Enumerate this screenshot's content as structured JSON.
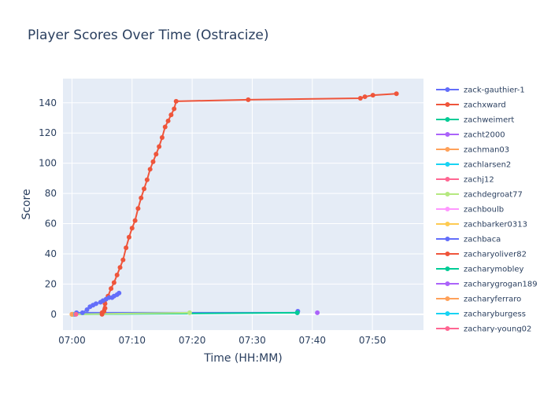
{
  "chart_data": {
    "type": "line",
    "title": "Player Scores Over Time (Ostracize)",
    "xlabel": "Time (HH:MM)",
    "ylabel": "Score",
    "x_ticks": [
      "07:00",
      "07:10",
      "07:20",
      "07:30",
      "07:40",
      "07:50"
    ],
    "y_ticks": [
      0,
      20,
      40,
      60,
      80,
      100,
      120,
      140
    ],
    "xlim": [
      "06:58:30",
      "07:58:30"
    ],
    "ylim": [
      -10.5,
      156
    ],
    "grid": true,
    "legend_position": "right",
    "series": [
      {
        "name": "zack-gauthier-1",
        "color": "#636efa",
        "points": [
          [
            "07:00:45",
            1
          ],
          [
            "07:37:30",
            1
          ],
          [
            "07:37:35",
            2
          ]
        ]
      },
      {
        "name": "zachxward",
        "color": "#EF553B",
        "points": [
          [
            "07:05:00",
            1
          ],
          [
            "07:05:30",
            7
          ],
          [
            "07:06:00",
            12
          ],
          [
            "07:06:30",
            17
          ],
          [
            "07:07:00",
            21
          ],
          [
            "07:07:30",
            26
          ],
          [
            "07:08:00",
            31
          ],
          [
            "07:08:30",
            36
          ],
          [
            "07:09:00",
            44
          ],
          [
            "07:09:30",
            51
          ],
          [
            "07:10:00",
            57
          ],
          [
            "07:10:30",
            62
          ],
          [
            "07:11:00",
            70
          ],
          [
            "07:11:30",
            77
          ],
          [
            "07:12:00",
            83
          ],
          [
            "07:12:30",
            89
          ],
          [
            "07:13:00",
            96
          ],
          [
            "07:13:30",
            101
          ],
          [
            "07:14:00",
            106
          ],
          [
            "07:14:30",
            111
          ],
          [
            "07:15:00",
            117
          ],
          [
            "07:15:30",
            124
          ],
          [
            "07:16:00",
            128
          ],
          [
            "07:16:30",
            132
          ],
          [
            "07:17:00",
            136
          ],
          [
            "07:17:20",
            141
          ],
          [
            "07:29:20",
            142
          ],
          [
            "07:48:00",
            143
          ],
          [
            "07:48:45",
            144
          ],
          [
            "07:50:05",
            145
          ],
          [
            "07:54:00",
            146
          ]
        ]
      },
      {
        "name": "zachweimert",
        "color": "#00cc96",
        "points": [
          [
            "07:00:00",
            0
          ],
          [
            "07:37:30",
            1
          ]
        ]
      },
      {
        "name": "zacht2000",
        "color": "#ab63fa",
        "points": [
          [
            "07:40:50",
            1
          ]
        ]
      },
      {
        "name": "zachman03",
        "color": "#FFA15A",
        "points": [
          [
            "07:00:00",
            0
          ]
        ]
      },
      {
        "name": "zachlarsen2",
        "color": "#19d3f3",
        "points": [
          [
            "07:00:05",
            0
          ]
        ]
      },
      {
        "name": "zachj12",
        "color": "#FF6692",
        "points": [
          [
            "07:00:10",
            0
          ]
        ]
      },
      {
        "name": "zachdegroat77",
        "color": "#B6E880",
        "points": [
          [
            "07:00:15",
            0
          ],
          [
            "07:19:35",
            1
          ]
        ]
      },
      {
        "name": "zachboulb",
        "color": "#FF97FF",
        "points": [
          [
            "07:00:20",
            0
          ]
        ]
      },
      {
        "name": "zachbarker0313",
        "color": "#FECB52",
        "points": [
          [
            "07:00:00",
            0
          ]
        ]
      },
      {
        "name": "zachbaca",
        "color": "#636efa",
        "points": [
          [
            "07:01:45",
            1
          ],
          [
            "07:02:30",
            3
          ],
          [
            "07:03:00",
            5
          ],
          [
            "07:03:30",
            6
          ],
          [
            "07:04:00",
            7
          ],
          [
            "07:04:45",
            8
          ],
          [
            "07:05:10",
            9
          ],
          [
            "07:05:40",
            10
          ],
          [
            "07:06:10",
            11
          ],
          [
            "07:06:40",
            11
          ],
          [
            "07:07:00",
            12
          ],
          [
            "07:07:30",
            13
          ],
          [
            "07:07:50",
            14
          ]
        ]
      },
      {
        "name": "zacharyoliver82",
        "color": "#EF553B",
        "points": [
          [
            "07:05:00",
            0
          ],
          [
            "07:05:20",
            2
          ],
          [
            "07:05:30",
            4
          ]
        ]
      },
      {
        "name": "zacharymobley",
        "color": "#00cc96",
        "points": [
          [
            "07:00:25",
            0
          ]
        ]
      },
      {
        "name": "zacharygrogan189",
        "color": "#ab63fa",
        "points": [
          [
            "07:00:30",
            0
          ]
        ]
      },
      {
        "name": "zacharyferraro",
        "color": "#FFA15A",
        "points": [
          [
            "07:00:00",
            0
          ]
        ]
      },
      {
        "name": "zacharyburgess",
        "color": "#19d3f3",
        "points": [
          [
            "07:00:35",
            0
          ]
        ]
      },
      {
        "name": "zachary-young02",
        "color": "#FF6692",
        "points": [
          [
            "07:00:40",
            0
          ]
        ]
      }
    ]
  }
}
